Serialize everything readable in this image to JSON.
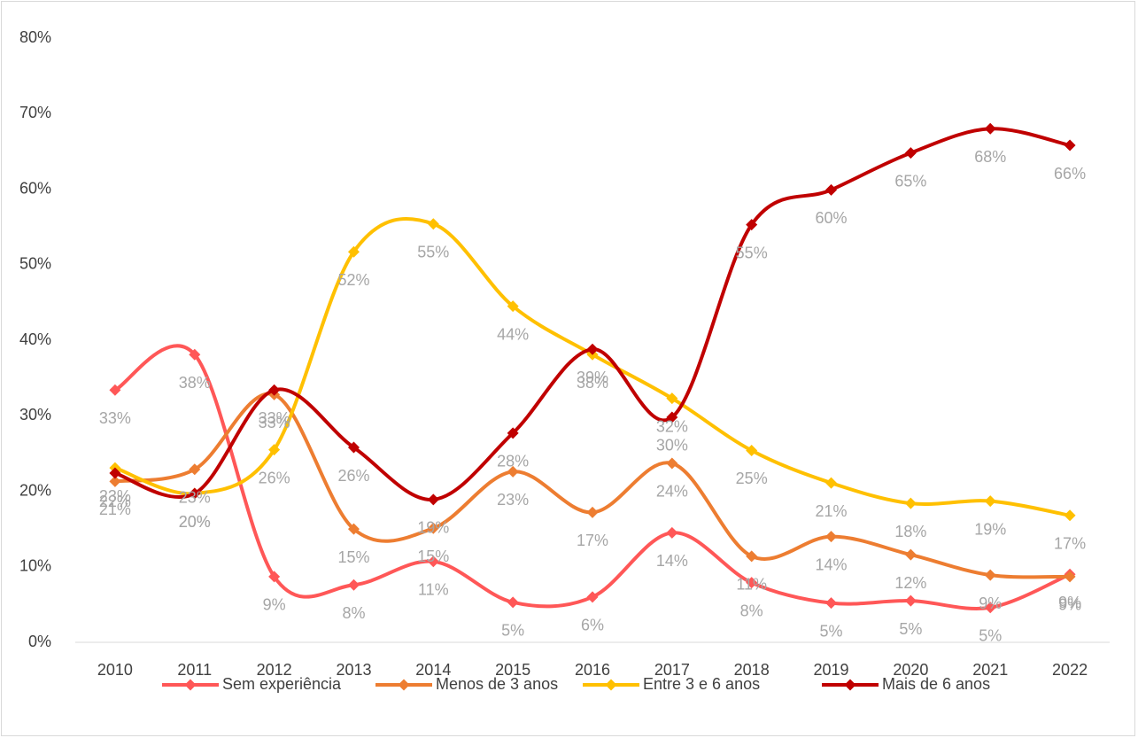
{
  "chart_data": {
    "type": "line",
    "categories": [
      "2010",
      "2011",
      "2012",
      "2013",
      "2014",
      "2015",
      "2016",
      "2017",
      "2018",
      "2019",
      "2020",
      "2021",
      "2022"
    ],
    "series": [
      {
        "name": "Sem experiência",
        "color": "#ff5757",
        "values": [
          33.4,
          38.1,
          8.7,
          7.6,
          10.7,
          5.3,
          6.0,
          14.5,
          7.9,
          5.2,
          5.5,
          4.6,
          9.0
        ],
        "value_labels": [
          "33%",
          "38%",
          "9%",
          "8%",
          "11%",
          "5%",
          "6%",
          "14%",
          "8%",
          "5%",
          "5%",
          "5%",
          "9%"
        ]
      },
      {
        "name": "Menos de 3 anos",
        "color": "#ed7d31",
        "values": [
          21.3,
          22.9,
          32.8,
          15.0,
          15.1,
          22.6,
          17.2,
          23.7,
          11.4,
          14.0,
          11.6,
          8.9,
          8.7
        ],
        "value_labels": [
          "21%",
          "23%",
          "33%",
          "15%",
          "15%",
          "23%",
          "17%",
          "24%",
          "11%",
          "14%",
          "12%",
          "9%",
          "9%"
        ]
      },
      {
        "name": "Entre 3 e 6 anos",
        "color": "#ffc000",
        "values": [
          23.1,
          19.7,
          25.5,
          51.7,
          55.4,
          44.5,
          38.1,
          32.3,
          25.4,
          21.1,
          18.4,
          18.7,
          16.8
        ],
        "value_labels": [
          "23%",
          "20%",
          "26%",
          "52%",
          "55%",
          "44%",
          "38%",
          "32%",
          "25%",
          "21%",
          "18%",
          "19%",
          "17%"
        ]
      },
      {
        "name": "Mais de 6 anos",
        "color": "#c00000",
        "values": [
          22.4,
          19.7,
          33.4,
          25.8,
          18.9,
          27.7,
          38.8,
          29.8,
          55.3,
          59.9,
          64.8,
          68.0,
          65.8
        ],
        "value_labels": [
          "22%",
          "20%",
          "33%",
          "26%",
          "19%",
          "28%",
          "39%",
          "30%",
          "55%",
          "60%",
          "65%",
          "68%",
          "66%"
        ]
      }
    ],
    "ylim": [
      0,
      80
    ],
    "yticks": [
      {
        "value": 0,
        "label": "0%"
      },
      {
        "value": 10,
        "label": "10%"
      },
      {
        "value": 20,
        "label": "20%"
      },
      {
        "value": 30,
        "label": "30%"
      },
      {
        "value": 40,
        "label": "40%"
      },
      {
        "value": 50,
        "label": "50%"
      },
      {
        "value": 60,
        "label": "60%"
      },
      {
        "value": 70,
        "label": "70%"
      },
      {
        "value": 80,
        "label": "80%"
      }
    ],
    "grid": false,
    "smooth": true,
    "legend": "bottom"
  }
}
